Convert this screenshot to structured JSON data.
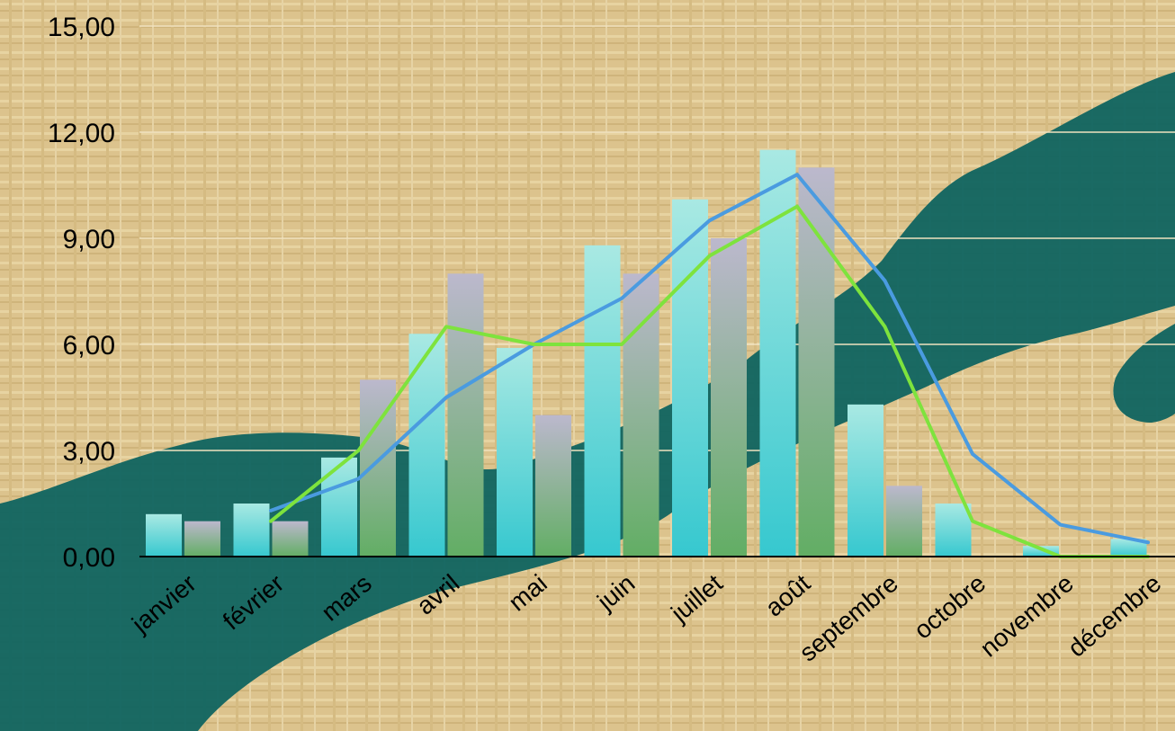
{
  "colors": {
    "background": "#dcc38d",
    "grid": "#f0e2bf",
    "decor": "#0f6460",
    "series_a": "#39c9cf",
    "series_b": "#6bb26f",
    "line_a": "#4a9be0",
    "line_b": "#7ee33d"
  },
  "chart_data": {
    "type": "bar",
    "title": "",
    "xlabel": "",
    "ylabel": "",
    "ylim": [
      0,
      15
    ],
    "y_ticks": [
      "0,00",
      "3,00",
      "6,00",
      "9,00",
      "12,00",
      "15,00"
    ],
    "grid": true,
    "legend": "none",
    "categories": [
      "janvier",
      "février",
      "mars",
      "avril",
      "mai",
      "juin",
      "juillet",
      "août",
      "septembre",
      "octobre",
      "novembre",
      "décembre"
    ],
    "bar_series": [
      {
        "values": [
          1.2,
          1.5,
          2.8,
          6.3,
          5.9,
          8.8,
          10.1,
          11.5,
          4.3,
          1.5,
          0.3,
          0.5
        ]
      },
      {
        "values": [
          1.0,
          1.0,
          5.0,
          8.0,
          4.0,
          8.0,
          9.0,
          11.0,
          2.0,
          0.0,
          0.0,
          0.0
        ]
      }
    ],
    "line_series": [
      {
        "values": [
          null,
          1.3,
          2.2,
          4.5,
          6.0,
          7.3,
          9.5,
          10.8,
          7.8,
          2.9,
          0.9,
          0.4
        ]
      },
      {
        "values": [
          null,
          1.0,
          3.0,
          6.5,
          6.0,
          6.0,
          8.5,
          9.9,
          6.5,
          1.0,
          0.0,
          0.0
        ]
      }
    ]
  }
}
